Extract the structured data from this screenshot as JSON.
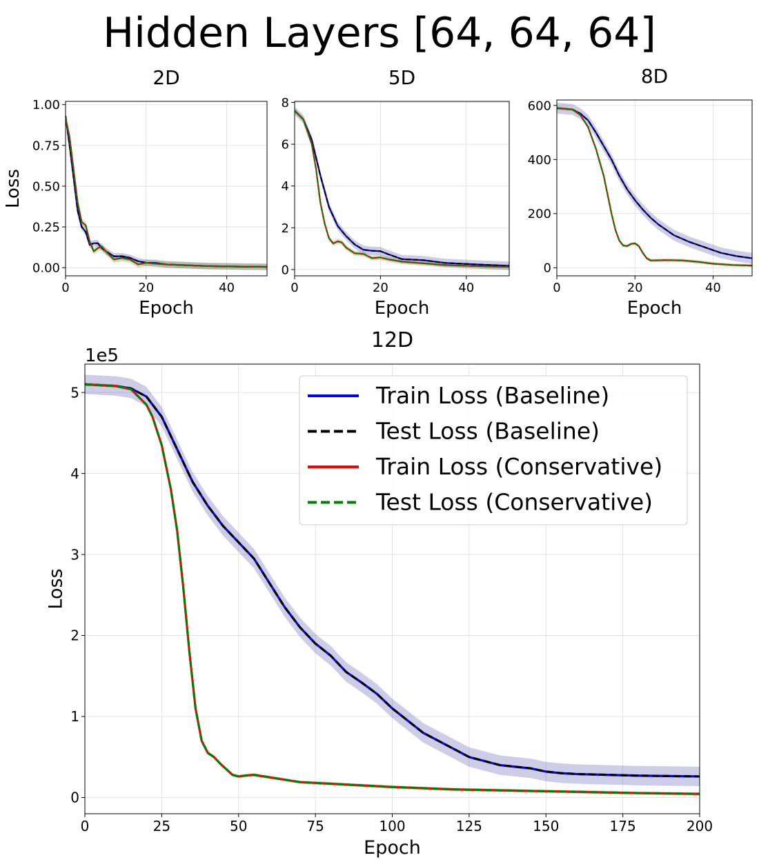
{
  "figure": {
    "suptitle": "Hidden Layers [64, 64, 64]"
  },
  "colors": {
    "train_baseline": "#0000ff",
    "test_baseline": "#000000",
    "train_conservative": "#ff0000",
    "test_conservative": "#008000",
    "band_baseline": "#5a5ab4",
    "band_conservative": "#7a8a3a"
  },
  "chart_data": [
    {
      "type": "line",
      "title": "2D",
      "xlabel": "Epoch",
      "ylabel": "Loss",
      "xlim": [
        0,
        50
      ],
      "ylim": [
        -0.05,
        1.02
      ],
      "xticks": [
        0,
        20,
        40
      ],
      "yticks": [
        0.0,
        0.25,
        0.5,
        0.75,
        1.0
      ],
      "ytick_labels": [
        "0.00",
        "0.25",
        "0.50",
        "0.75",
        "1.00"
      ],
      "grid": true,
      "series": [
        {
          "name": "Train Loss (Baseline)",
          "style": "solid",
          "x": [
            0,
            1,
            2,
            3,
            4,
            5,
            6,
            7,
            8,
            9,
            10,
            12,
            14,
            16,
            18,
            20,
            22,
            25,
            30,
            35,
            40,
            45,
            50
          ],
          "y": [
            0.93,
            0.75,
            0.55,
            0.35,
            0.25,
            0.22,
            0.14,
            0.15,
            0.15,
            0.12,
            0.1,
            0.07,
            0.07,
            0.06,
            0.04,
            0.03,
            0.03,
            0.02,
            0.015,
            0.01,
            0.008,
            0.006,
            0.005
          ],
          "band": 0.02
        },
        {
          "name": "Test Loss (Baseline)",
          "style": "dashed",
          "x": [
            0,
            1,
            2,
            3,
            4,
            5,
            6,
            7,
            8,
            9,
            10,
            12,
            14,
            16,
            18,
            20,
            22,
            25,
            30,
            35,
            40,
            45,
            50
          ],
          "y": [
            0.93,
            0.75,
            0.55,
            0.35,
            0.25,
            0.22,
            0.14,
            0.15,
            0.15,
            0.12,
            0.1,
            0.07,
            0.07,
            0.06,
            0.04,
            0.03,
            0.03,
            0.02,
            0.015,
            0.01,
            0.008,
            0.006,
            0.005
          ]
        },
        {
          "name": "Train Loss (Conservative)",
          "style": "solid",
          "x": [
            0,
            1,
            2,
            3,
            4,
            5,
            6,
            7,
            8,
            9,
            10,
            12,
            14,
            16,
            18,
            20,
            22,
            25,
            30,
            35,
            40,
            45,
            50
          ],
          "y": [
            0.92,
            0.8,
            0.6,
            0.4,
            0.28,
            0.26,
            0.16,
            0.1,
            0.12,
            0.13,
            0.1,
            0.05,
            0.06,
            0.05,
            0.02,
            0.03,
            0.025,
            0.02,
            0.015,
            0.01,
            0.008,
            0.006,
            0.005
          ],
          "band": 0.02
        },
        {
          "name": "Test Loss (Conservative)",
          "style": "dashed",
          "x": [
            0,
            1,
            2,
            3,
            4,
            5,
            6,
            7,
            8,
            9,
            10,
            12,
            14,
            16,
            18,
            20,
            22,
            25,
            30,
            35,
            40,
            45,
            50
          ],
          "y": [
            0.92,
            0.8,
            0.6,
            0.4,
            0.28,
            0.26,
            0.16,
            0.1,
            0.12,
            0.13,
            0.1,
            0.05,
            0.06,
            0.05,
            0.02,
            0.03,
            0.025,
            0.02,
            0.015,
            0.01,
            0.008,
            0.006,
            0.005
          ]
        }
      ]
    },
    {
      "type": "line",
      "title": "5D",
      "xlabel": "Epoch",
      "ylabel": "",
      "xlim": [
        0,
        50
      ],
      "ylim": [
        -0.3,
        8.05
      ],
      "xticks": [
        0,
        20,
        40
      ],
      "yticks": [
        0,
        2,
        4,
        6,
        8
      ],
      "ytick_labels": [
        "0",
        "2",
        "4",
        "6",
        "8"
      ],
      "grid": true,
      "series": [
        {
          "name": "Train Loss (Baseline)",
          "style": "solid",
          "x": [
            0,
            2,
            4,
            6,
            8,
            10,
            12,
            14,
            16,
            18,
            20,
            22,
            25,
            30,
            35,
            40,
            45,
            50
          ],
          "y": [
            7.6,
            7.2,
            6.2,
            4.5,
            3.0,
            2.1,
            1.6,
            1.2,
            0.95,
            0.9,
            0.88,
            0.72,
            0.5,
            0.45,
            0.32,
            0.27,
            0.22,
            0.18
          ],
          "band": 0.2
        },
        {
          "name": "Test Loss (Baseline)",
          "style": "dashed",
          "x": [
            0,
            2,
            4,
            6,
            8,
            10,
            12,
            14,
            16,
            18,
            20,
            22,
            25,
            30,
            35,
            40,
            45,
            50
          ],
          "y": [
            7.6,
            7.2,
            6.2,
            4.5,
            3.0,
            2.1,
            1.6,
            1.2,
            0.95,
            0.9,
            0.88,
            0.72,
            0.5,
            0.45,
            0.32,
            0.27,
            0.22,
            0.18
          ]
        },
        {
          "name": "Train Loss (Conservative)",
          "style": "solid",
          "x": [
            0,
            2,
            4,
            5,
            6,
            7,
            8,
            9,
            10,
            11,
            12,
            14,
            16,
            18,
            20,
            22,
            25,
            30,
            35,
            40,
            45,
            50
          ],
          "y": [
            7.6,
            7.2,
            6.0,
            4.8,
            3.2,
            2.2,
            1.5,
            1.25,
            1.35,
            1.3,
            1.05,
            0.78,
            0.75,
            0.55,
            0.58,
            0.48,
            0.38,
            0.3,
            0.22,
            0.18,
            0.15,
            0.13
          ],
          "band": 0.12
        },
        {
          "name": "Test Loss (Conservative)",
          "style": "dashed",
          "x": [
            0,
            2,
            4,
            5,
            6,
            7,
            8,
            9,
            10,
            11,
            12,
            14,
            16,
            18,
            20,
            22,
            25,
            30,
            35,
            40,
            45,
            50
          ],
          "y": [
            7.6,
            7.2,
            6.0,
            4.8,
            3.2,
            2.2,
            1.5,
            1.25,
            1.35,
            1.3,
            1.05,
            0.78,
            0.75,
            0.55,
            0.58,
            0.48,
            0.38,
            0.3,
            0.22,
            0.18,
            0.15,
            0.13
          ]
        }
      ]
    },
    {
      "type": "line",
      "title": "8D",
      "xlabel": "Epoch",
      "ylabel": "",
      "xlim": [
        0,
        50
      ],
      "ylim": [
        -30,
        620
      ],
      "xticks": [
        0,
        20,
        40
      ],
      "yticks": [
        0,
        200,
        400,
        600
      ],
      "ytick_labels": [
        "0",
        "200",
        "400",
        "600"
      ],
      "grid": true,
      "series": [
        {
          "name": "Train Loss (Baseline)",
          "style": "solid",
          "x": [
            0,
            4,
            6,
            8,
            10,
            12,
            14,
            16,
            18,
            20,
            22,
            24,
            26,
            28,
            30,
            34,
            38,
            42,
            46,
            50
          ],
          "y": [
            590,
            585,
            570,
            545,
            500,
            450,
            400,
            340,
            290,
            250,
            215,
            185,
            160,
            140,
            120,
            95,
            75,
            55,
            43,
            35
          ],
          "band": 20
        },
        {
          "name": "Test Loss (Baseline)",
          "style": "dashed",
          "x": [
            0,
            4,
            6,
            8,
            10,
            12,
            14,
            16,
            18,
            20,
            22,
            24,
            26,
            28,
            30,
            34,
            38,
            42,
            46,
            50
          ],
          "y": [
            590,
            585,
            570,
            545,
            500,
            450,
            400,
            340,
            290,
            250,
            215,
            185,
            160,
            140,
            120,
            95,
            75,
            55,
            43,
            35
          ]
        },
        {
          "name": "Train Loss (Conservative)",
          "style": "solid",
          "x": [
            0,
            4,
            6,
            8,
            10,
            12,
            13,
            14,
            15,
            16,
            17,
            18,
            19,
            20,
            21,
            22,
            23,
            24,
            25,
            28,
            32,
            36,
            40,
            45,
            50
          ],
          "y": [
            590,
            585,
            565,
            520,
            440,
            340,
            270,
            200,
            140,
            100,
            82,
            80,
            88,
            90,
            80,
            55,
            35,
            27,
            27,
            28,
            27,
            22,
            15,
            10,
            8
          ],
          "band": 6
        },
        {
          "name": "Test Loss (Conservative)",
          "style": "dashed",
          "x": [
            0,
            4,
            6,
            8,
            10,
            12,
            13,
            14,
            15,
            16,
            17,
            18,
            19,
            20,
            21,
            22,
            23,
            24,
            25,
            28,
            32,
            36,
            40,
            45,
            50
          ],
          "y": [
            590,
            585,
            565,
            520,
            440,
            340,
            270,
            200,
            140,
            100,
            82,
            80,
            88,
            90,
            80,
            55,
            35,
            27,
            27,
            28,
            27,
            22,
            15,
            10,
            8
          ]
        }
      ]
    },
    {
      "type": "line",
      "title": "12D",
      "xlabel": "Epoch",
      "ylabel": "Loss",
      "offset_label": "1e5",
      "xlim": [
        0,
        200
      ],
      "ylim": [
        -0.2,
        5.35
      ],
      "xticks": [
        0,
        25,
        50,
        75,
        100,
        125,
        150,
        175,
        200
      ],
      "yticks": [
        0,
        1,
        2,
        3,
        4,
        5
      ],
      "ytick_labels": [
        "0",
        "1",
        "2",
        "3",
        "4",
        "5"
      ],
      "grid": true,
      "legend": "top-right",
      "series": [
        {
          "name": "Train Loss (Baseline)",
          "style": "solid",
          "x": [
            0,
            10,
            15,
            20,
            25,
            30,
            35,
            40,
            45,
            50,
            55,
            60,
            65,
            70,
            75,
            80,
            85,
            90,
            95,
            100,
            105,
            110,
            115,
            120,
            125,
            130,
            135,
            140,
            145,
            150,
            155,
            160,
            170,
            180,
            190,
            200
          ],
          "y": [
            5.1,
            5.08,
            5.05,
            4.95,
            4.7,
            4.3,
            3.9,
            3.6,
            3.35,
            3.15,
            2.95,
            2.65,
            2.35,
            2.1,
            1.9,
            1.75,
            1.55,
            1.42,
            1.28,
            1.1,
            0.95,
            0.8,
            0.7,
            0.6,
            0.5,
            0.45,
            0.4,
            0.38,
            0.36,
            0.32,
            0.3,
            0.29,
            0.28,
            0.27,
            0.265,
            0.26
          ],
          "band": 0.12
        },
        {
          "name": "Test Loss (Baseline)",
          "style": "dashed",
          "x": [
            0,
            10,
            15,
            20,
            25,
            30,
            35,
            40,
            45,
            50,
            55,
            60,
            65,
            70,
            75,
            80,
            85,
            90,
            95,
            100,
            105,
            110,
            115,
            120,
            125,
            130,
            135,
            140,
            145,
            150,
            155,
            160,
            170,
            180,
            190,
            200
          ],
          "y": [
            5.1,
            5.08,
            5.05,
            4.95,
            4.7,
            4.3,
            3.9,
            3.6,
            3.35,
            3.15,
            2.95,
            2.65,
            2.35,
            2.1,
            1.9,
            1.75,
            1.55,
            1.42,
            1.28,
            1.1,
            0.95,
            0.8,
            0.7,
            0.6,
            0.5,
            0.45,
            0.4,
            0.38,
            0.36,
            0.32,
            0.3,
            0.29,
            0.28,
            0.27,
            0.265,
            0.26
          ]
        },
        {
          "name": "Train Loss (Conservative)",
          "style": "solid",
          "x": [
            0,
            10,
            15,
            20,
            22,
            25,
            28,
            30,
            32,
            34,
            36,
            38,
            40,
            42,
            44,
            46,
            48,
            50,
            52,
            55,
            60,
            65,
            70,
            80,
            90,
            100,
            120,
            140,
            160,
            180,
            200
          ],
          "y": [
            5.1,
            5.08,
            5.04,
            4.85,
            4.7,
            4.35,
            3.8,
            3.3,
            2.6,
            1.8,
            1.1,
            0.7,
            0.55,
            0.5,
            0.42,
            0.35,
            0.28,
            0.26,
            0.27,
            0.28,
            0.25,
            0.22,
            0.19,
            0.17,
            0.15,
            0.13,
            0.1,
            0.085,
            0.07,
            0.055,
            0.045
          ],
          "band": 0.02
        },
        {
          "name": "Test Loss (Conservative)",
          "style": "dashed",
          "x": [
            0,
            10,
            15,
            20,
            22,
            25,
            28,
            30,
            32,
            34,
            36,
            38,
            40,
            42,
            44,
            46,
            48,
            50,
            52,
            55,
            60,
            65,
            70,
            80,
            90,
            100,
            120,
            140,
            160,
            180,
            200
          ],
          "y": [
            5.1,
            5.08,
            5.04,
            4.85,
            4.7,
            4.35,
            3.8,
            3.3,
            2.6,
            1.8,
            1.1,
            0.7,
            0.55,
            0.5,
            0.42,
            0.35,
            0.28,
            0.26,
            0.27,
            0.28,
            0.25,
            0.22,
            0.19,
            0.17,
            0.15,
            0.13,
            0.1,
            0.085,
            0.07,
            0.055,
            0.045
          ]
        }
      ]
    }
  ]
}
